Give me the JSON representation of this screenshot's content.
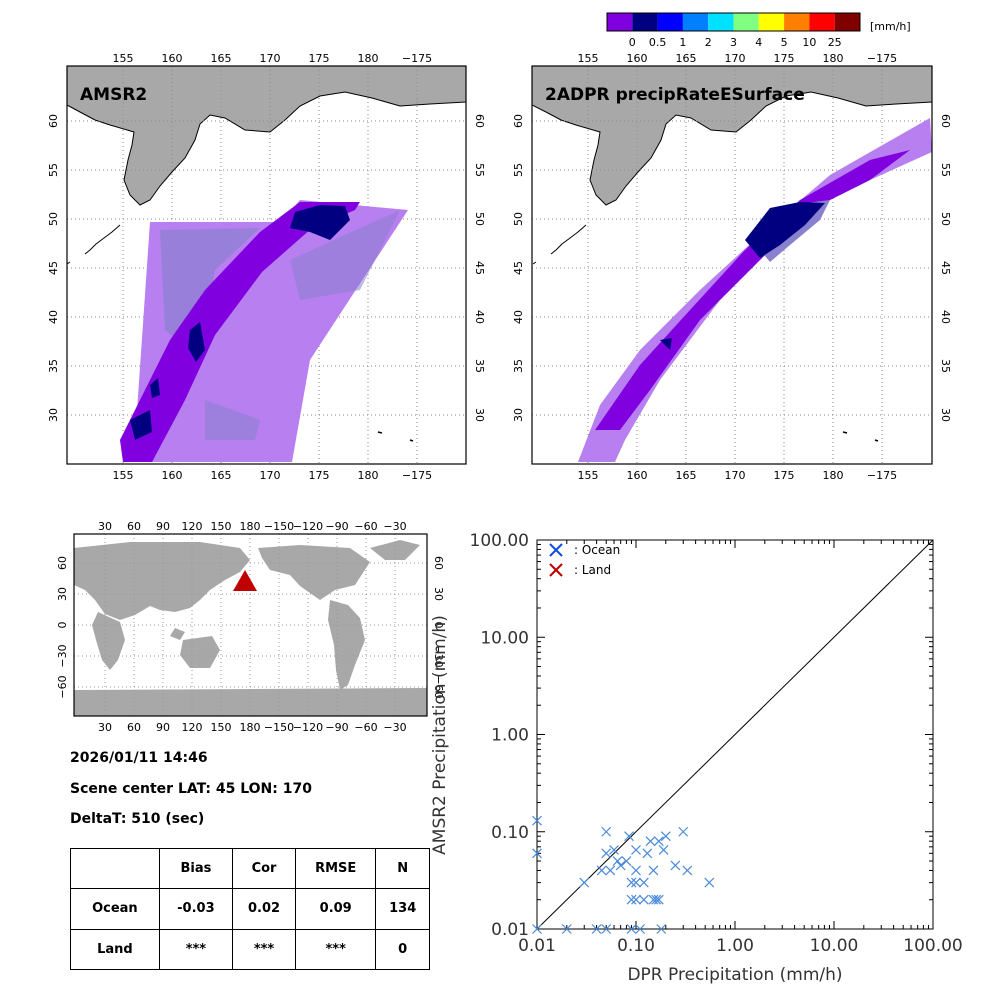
{
  "colorbar": {
    "unit_label": "[mm/h]",
    "tick_labels": [
      "0",
      "0.5",
      "1",
      "2",
      "3",
      "4",
      "5",
      "10",
      "25"
    ],
    "colors": [
      "#8000e0",
      "#000080",
      "#0000ff",
      "#0080ff",
      "#00e0ff",
      "#80ff80",
      "#ffff00",
      "#ff8000",
      "#ff0000",
      "#800000"
    ]
  },
  "map_panels": [
    {
      "title": "AMSR2"
    },
    {
      "title": "2ADPR precipRateESurface"
    }
  ],
  "map_axes": {
    "lon_ticks": [
      "155",
      "160",
      "165",
      "170",
      "175",
      "180",
      "−175"
    ],
    "lat_ticks": [
      "30",
      "35",
      "40",
      "45",
      "50",
      "55",
      "60"
    ],
    "land_color": "#a8a8a8",
    "swath_light": "#b87ff0",
    "swath_mid": "#8a80d0",
    "swath_dark": "#8000e0",
    "swath_darkest": "#000080"
  },
  "world_map": {
    "lon_ticks": [
      "30",
      "60",
      "90",
      "120",
      "150",
      "180",
      "−150",
      "−120",
      "−90",
      "−60",
      "−30"
    ],
    "lat_ticks": [
      "60",
      "30",
      "0",
      "−30",
      "−60"
    ],
    "marker_color": "#c00000"
  },
  "info": {
    "datetime": "2026/01/11 14:46",
    "scene_center": "Scene center LAT: 45   LON: 170",
    "delta_t": "DeltaT:  510 (sec)"
  },
  "stats_table": {
    "headers": [
      "",
      "Bias",
      "Cor",
      "RMSE",
      "N"
    ],
    "rows": [
      [
        "Ocean",
        "-0.03",
        "0.02",
        "0.09",
        "134"
      ],
      [
        "Land",
        "***",
        "***",
        "***",
        "0"
      ]
    ]
  },
  "chart_data": {
    "type": "scatter",
    "xscale": "log",
    "yscale": "log",
    "xlim": [
      0.01,
      100
    ],
    "ylim": [
      0.01,
      100
    ],
    "x_tick_labels": [
      "0.01",
      "0.10",
      "1.00",
      "10.00",
      "100.00"
    ],
    "y_tick_labels": [
      "0.01",
      "0.10",
      "1.00",
      "10.00",
      "100.00"
    ],
    "xlabel": "DPR Precipitation (mm/h)",
    "ylabel": "AMSR2 Precipitation (mm/h)",
    "legend": [
      {
        "label": ": Ocean",
        "color": "#1050e0"
      },
      {
        "label": ": Land",
        "color": "#c00000"
      }
    ],
    "series": [
      {
        "name": "Ocean",
        "color": "#4a8ad8",
        "points": [
          [
            0.01,
            0.13
          ],
          [
            0.01,
            0.06
          ],
          [
            0.01,
            0.01
          ],
          [
            0.02,
            0.01
          ],
          [
            0.03,
            0.03
          ],
          [
            0.04,
            0.01
          ],
          [
            0.045,
            0.04
          ],
          [
            0.05,
            0.1
          ],
          [
            0.05,
            0.06
          ],
          [
            0.05,
            0.01
          ],
          [
            0.055,
            0.04
          ],
          [
            0.06,
            0.065
          ],
          [
            0.065,
            0.05
          ],
          [
            0.07,
            0.045
          ],
          [
            0.08,
            0.05
          ],
          [
            0.085,
            0.09
          ],
          [
            0.09,
            0.03
          ],
          [
            0.09,
            0.02
          ],
          [
            0.09,
            0.01
          ],
          [
            0.1,
            0.065
          ],
          [
            0.1,
            0.04
          ],
          [
            0.1,
            0.03
          ],
          [
            0.1,
            0.02
          ],
          [
            0.11,
            0.01
          ],
          [
            0.12,
            0.03
          ],
          [
            0.12,
            0.02
          ],
          [
            0.13,
            0.06
          ],
          [
            0.14,
            0.08
          ],
          [
            0.15,
            0.04
          ],
          [
            0.15,
            0.02
          ],
          [
            0.16,
            0.02
          ],
          [
            0.17,
            0.08
          ],
          [
            0.17,
            0.02
          ],
          [
            0.18,
            0.01
          ],
          [
            0.19,
            0.065
          ],
          [
            0.2,
            0.09
          ],
          [
            0.25,
            0.045
          ],
          [
            0.3,
            0.1
          ],
          [
            0.33,
            0.04
          ],
          [
            0.55,
            0.03
          ]
        ]
      },
      {
        "name": "Land",
        "color": "#c00000",
        "points": []
      }
    ]
  }
}
